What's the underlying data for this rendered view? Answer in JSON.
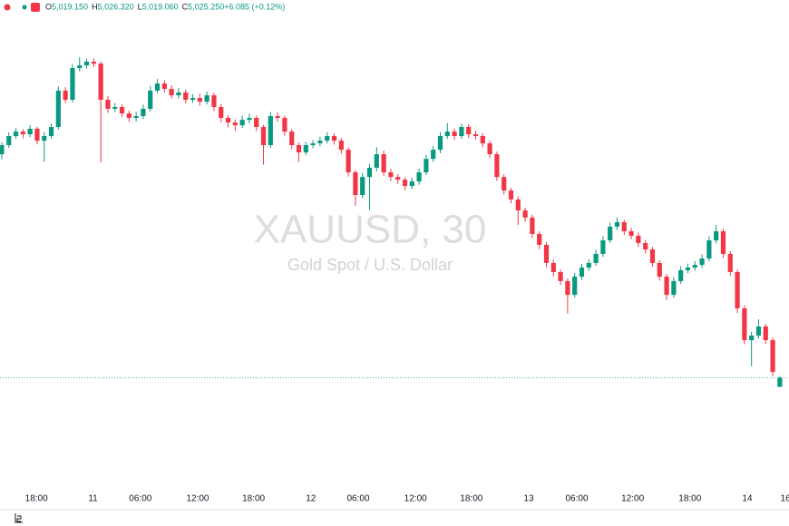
{
  "chart_data": {
    "type": "candlestick",
    "title": "XAUUSD, 30",
    "subtitle": "Gold Spot / U.S. Dollar",
    "header": [
      {
        "label": "O",
        "value": "5,019.150"
      },
      {
        "label": "H",
        "value": "5,026.320"
      },
      {
        "label": "L",
        "value": "5,019.060"
      },
      {
        "label": "C",
        "value": "5,025.250"
      },
      {
        "label": "",
        "value": "+6.085 (+0.12%)"
      }
    ],
    "up_color": "#089981",
    "down_color": "#f23645",
    "xlim": [
      -0.25,
      111.3
    ],
    "ylim": [
      4950,
      5270
    ],
    "xticks": [
      {
        "value": 4.9,
        "label": "18:00"
      },
      {
        "value": 12.9,
        "label": "11"
      },
      {
        "value": 19.6,
        "label": "06:00"
      },
      {
        "value": 27.7,
        "label": "12:00"
      },
      {
        "value": 35.6,
        "label": "18:00"
      },
      {
        "value": 43.7,
        "label": "12"
      },
      {
        "value": 50.4,
        "label": "06:00"
      },
      {
        "value": 58.5,
        "label": "12:00"
      },
      {
        "value": 66.4,
        "label": "18:00"
      },
      {
        "value": 74.5,
        "label": "13"
      },
      {
        "value": 81.3,
        "label": "06:00"
      },
      {
        "value": 89.2,
        "label": "12:00"
      },
      {
        "value": 97.3,
        "label": "18:00"
      },
      {
        "value": 105.4,
        "label": "14"
      },
      {
        "value": 110.8,
        "label": "16"
      }
    ],
    "ohlc": [
      [
        5175.5,
        5183.4,
        5172.1,
        5181.6
      ],
      [
        5181.6,
        5190.2,
        5179.8,
        5187.7
      ],
      [
        5187.7,
        5193.0,
        5185.9,
        5190.7
      ],
      [
        5190.7,
        5192.4,
        5186.2,
        5188.9
      ],
      [
        5188.9,
        5195.1,
        5187.0,
        5192.6
      ],
      [
        5192.6,
        5194.0,
        5182.1,
        5184.6
      ],
      [
        5184.6,
        5190.3,
        5170.4,
        5187.7
      ],
      [
        5187.7,
        5196.2,
        5185.9,
        5193.8
      ],
      [
        5193.8,
        5221.0,
        5192.1,
        5218.2
      ],
      [
        5218.2,
        5220.5,
        5209.8,
        5212.1
      ],
      [
        5212.1,
        5236.0,
        5210.3,
        5233.4
      ],
      [
        5233.4,
        5240.6,
        5231.1,
        5235.2
      ],
      [
        5235.2,
        5239.8,
        5233.0,
        5237.7
      ],
      [
        5237.7,
        5239.9,
        5234.1,
        5236.4
      ],
      [
        5236.4,
        5238.0,
        5170.0,
        5212.1
      ],
      [
        5212.1,
        5214.6,
        5203.3,
        5206.0
      ],
      [
        5206.0,
        5209.9,
        5203.8,
        5207.2
      ],
      [
        5207.2,
        5209.0,
        5200.4,
        5202.9
      ],
      [
        5202.9,
        5204.7,
        5197.2,
        5199.9
      ],
      [
        5199.9,
        5204.0,
        5197.5,
        5201.1
      ],
      [
        5201.1,
        5208.8,
        5199.3,
        5206.0
      ],
      [
        5206.0,
        5221.5,
        5204.2,
        5218.2
      ],
      [
        5218.2,
        5226.1,
        5216.4,
        5223.0
      ],
      [
        5223.0,
        5225.3,
        5217.0,
        5219.4
      ],
      [
        5219.4,
        5221.8,
        5212.9,
        5215.1
      ],
      [
        5215.1,
        5219.9,
        5213.0,
        5217.0
      ],
      [
        5217.0,
        5218.8,
        5209.6,
        5212.1
      ],
      [
        5212.1,
        5215.8,
        5210.0,
        5213.3
      ],
      [
        5213.3,
        5216.2,
        5208.1,
        5210.8
      ],
      [
        5210.8,
        5217.6,
        5208.9,
        5215.1
      ],
      [
        5215.1,
        5216.9,
        5204.5,
        5207.2
      ],
      [
        5207.2,
        5209.3,
        5197.0,
        5199.9
      ],
      [
        5199.9,
        5201.8,
        5193.5,
        5196.8
      ],
      [
        5196.8,
        5198.9,
        5191.2,
        5195.0
      ],
      [
        5195.0,
        5201.4,
        5193.1,
        5198.6
      ],
      [
        5198.6,
        5202.7,
        5196.0,
        5199.9
      ],
      [
        5199.9,
        5201.6,
        5191.0,
        5193.8
      ],
      [
        5193.8,
        5195.2,
        5168.5,
        5181.6
      ],
      [
        5181.6,
        5203.9,
        5179.7,
        5201.1
      ],
      [
        5201.1,
        5203.5,
        5197.3,
        5199.9
      ],
      [
        5199.9,
        5201.4,
        5188.0,
        5190.7
      ],
      [
        5190.7,
        5192.5,
        5178.9,
        5181.6
      ],
      [
        5181.6,
        5183.3,
        5170.2,
        5176.7
      ],
      [
        5176.7,
        5183.9,
        5174.8,
        5181.6
      ],
      [
        5181.6,
        5185.0,
        5179.7,
        5182.8
      ],
      [
        5182.8,
        5187.3,
        5180.9,
        5184.6
      ],
      [
        5184.6,
        5190.2,
        5182.7,
        5187.7
      ],
      [
        5187.7,
        5189.5,
        5181.9,
        5184.6
      ],
      [
        5184.6,
        5186.4,
        5175.8,
        5178.5
      ],
      [
        5178.5,
        5180.1,
        5160.5,
        5163.3
      ],
      [
        5163.3,
        5165.0,
        5140.9,
        5148.1
      ],
      [
        5148.1,
        5162.8,
        5145.9,
        5160.2
      ],
      [
        5160.2,
        5168.9,
        5138.0,
        5166.4
      ],
      [
        5166.4,
        5180.2,
        5164.0,
        5175.5
      ],
      [
        5175.5,
        5177.9,
        5160.8,
        5163.3
      ],
      [
        5163.3,
        5165.7,
        5157.4,
        5160.2
      ],
      [
        5160.2,
        5162.1,
        5155.6,
        5158.4
      ],
      [
        5158.4,
        5160.0,
        5151.3,
        5154.2
      ],
      [
        5154.2,
        5159.6,
        5152.0,
        5157.2
      ],
      [
        5157.2,
        5165.8,
        5155.0,
        5163.3
      ],
      [
        5163.3,
        5175.1,
        5161.5,
        5172.4
      ],
      [
        5172.4,
        5181.0,
        5170.3,
        5178.5
      ],
      [
        5178.5,
        5190.3,
        5176.2,
        5187.7
      ],
      [
        5187.7,
        5196.4,
        5185.8,
        5190.7
      ],
      [
        5190.7,
        5192.8,
        5185.1,
        5187.7
      ],
      [
        5187.7,
        5196.0,
        5185.9,
        5193.8
      ],
      [
        5193.8,
        5195.5,
        5186.4,
        5188.9
      ],
      [
        5188.9,
        5191.2,
        5185.3,
        5187.7
      ],
      [
        5187.7,
        5189.6,
        5180.1,
        5182.8
      ],
      [
        5182.8,
        5184.7,
        5172.9,
        5175.5
      ],
      [
        5175.5,
        5177.3,
        5157.6,
        5160.2
      ],
      [
        5160.2,
        5162.0,
        5148.4,
        5151.1
      ],
      [
        5151.1,
        5153.0,
        5142.5,
        5145.1
      ],
      [
        5145.1,
        5147.2,
        5128.0,
        5137.7
      ],
      [
        5137.7,
        5139.6,
        5130.1,
        5132.9
      ],
      [
        5132.9,
        5134.8,
        5119.0,
        5121.9
      ],
      [
        5121.9,
        5123.7,
        5111.8,
        5114.6
      ],
      [
        5114.6,
        5116.3,
        5099.5,
        5102.4
      ],
      [
        5102.4,
        5104.6,
        5093.4,
        5096.3
      ],
      [
        5096.3,
        5098.1,
        5087.6,
        5090.2
      ],
      [
        5090.2,
        5092.0,
        5068.5,
        5081.0
      ],
      [
        5081.0,
        5095.7,
        5079.2,
        5093.2
      ],
      [
        5093.2,
        5101.8,
        5091.0,
        5099.3
      ],
      [
        5099.3,
        5104.9,
        5097.1,
        5102.4
      ],
      [
        5102.4,
        5111.3,
        5100.5,
        5108.5
      ],
      [
        5108.5,
        5120.3,
        5106.4,
        5117.6
      ],
      [
        5117.6,
        5129.4,
        5115.8,
        5126.8
      ],
      [
        5126.8,
        5133.0,
        5124.5,
        5129.8
      ],
      [
        5129.8,
        5131.6,
        5121.2,
        5123.7
      ],
      [
        5123.7,
        5126.0,
        5118.4,
        5120.7
      ],
      [
        5120.7,
        5122.9,
        5113.2,
        5115.8
      ],
      [
        5115.8,
        5117.9,
        5108.9,
        5111.5
      ],
      [
        5111.5,
        5113.3,
        5099.8,
        5102.4
      ],
      [
        5102.4,
        5104.1,
        5090.5,
        5093.2
      ],
      [
        5093.2,
        5095.0,
        5077.6,
        5081.0
      ],
      [
        5081.0,
        5092.8,
        5079.1,
        5090.2
      ],
      [
        5090.2,
        5100.1,
        5088.3,
        5097.5
      ],
      [
        5097.5,
        5102.0,
        5095.6,
        5099.3
      ],
      [
        5099.3,
        5103.7,
        5097.2,
        5101.1
      ],
      [
        5101.1,
        5108.2,
        5099.0,
        5105.4
      ],
      [
        5105.4,
        5120.3,
        5103.5,
        5117.6
      ],
      [
        5117.6,
        5128.0,
        5115.4,
        5123.7
      ],
      [
        5123.7,
        5125.5,
        5105.9,
        5108.5
      ],
      [
        5108.5,
        5110.3,
        5093.8,
        5096.3
      ],
      [
        5096.3,
        5098.0,
        5068.8,
        5071.9
      ],
      [
        5071.9,
        5074.0,
        5047.7,
        5050.5
      ],
      [
        5050.5,
        5056.2,
        5033.0,
        5053.6
      ],
      [
        5053.6,
        5064.5,
        5051.6,
        5059.7
      ],
      [
        5059.7,
        5061.5,
        5047.9,
        5050.5
      ],
      [
        5050.5,
        5052.3,
        5026.4,
        5029.2
      ],
      [
        5019.15,
        5026.32,
        5019.06,
        5025.25
      ]
    ]
  }
}
